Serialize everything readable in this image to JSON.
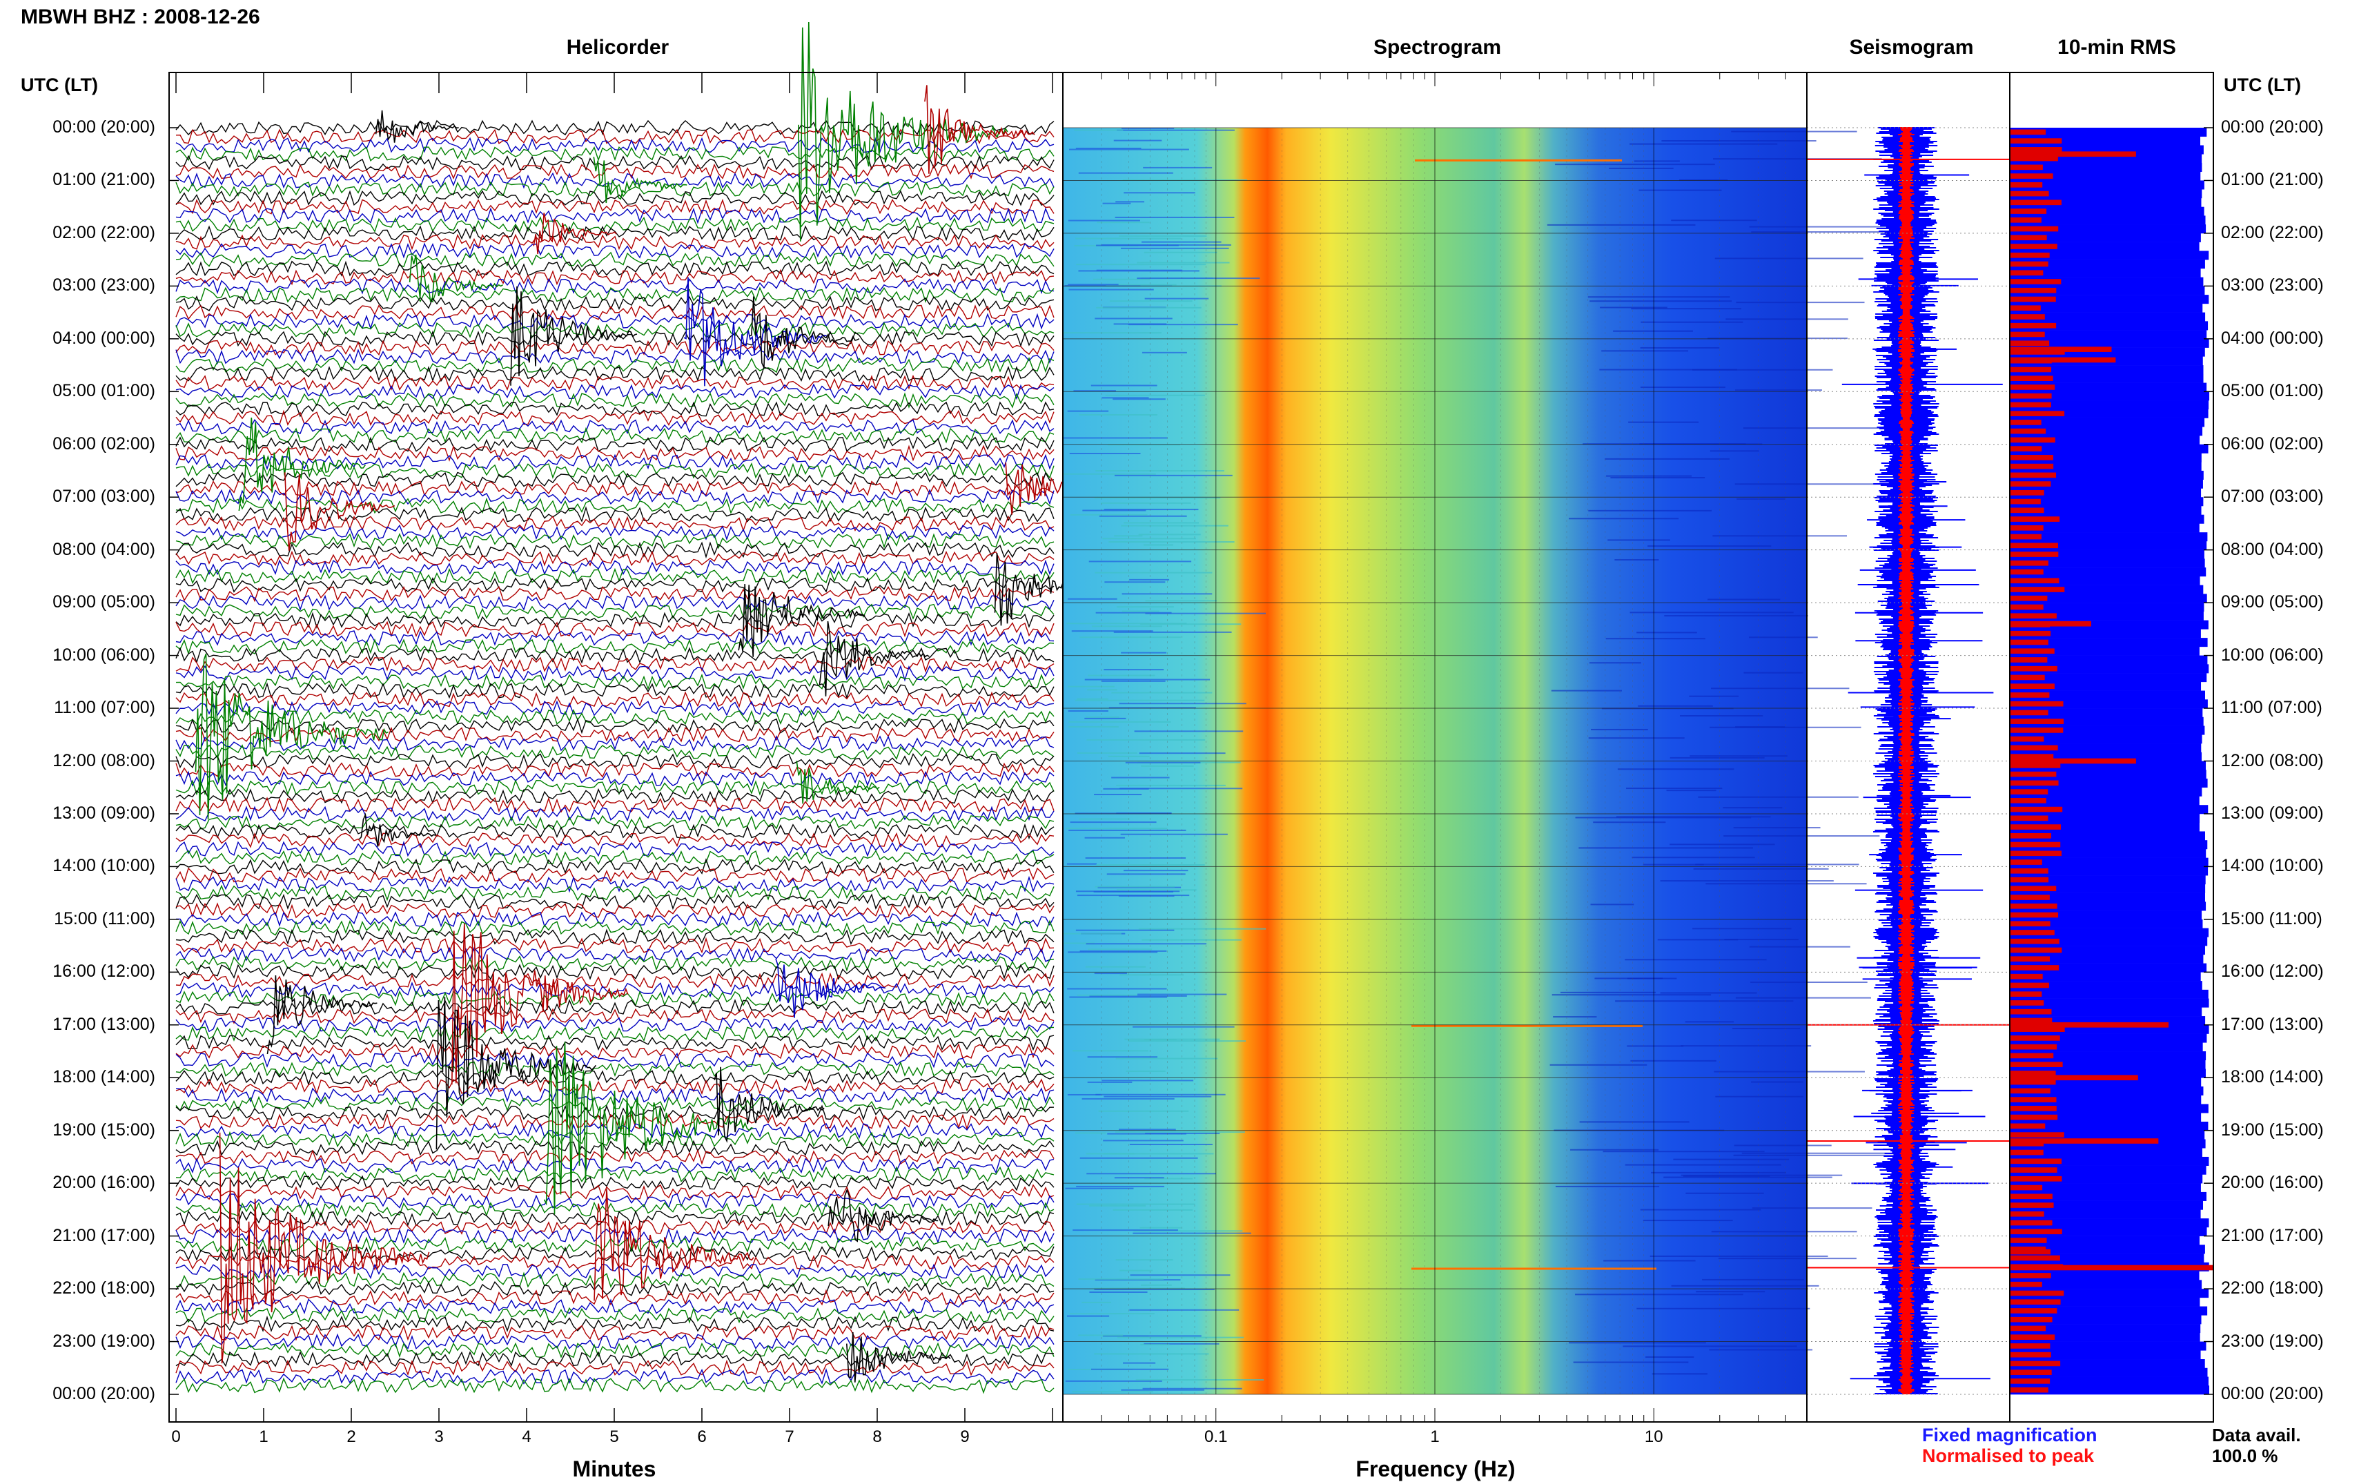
{
  "station_title": "MBWH BHZ : 2008-12-26",
  "panels": {
    "helicorder": "Helicorder",
    "spectrogram": "Spectrogram",
    "seismogram": "Seismogram",
    "rms": "10-min RMS"
  },
  "time_axis_header": "UTC (LT)",
  "time_labels": [
    "00:00 (20:00)",
    "01:00 (21:00)",
    "02:00 (22:00)",
    "03:00 (23:00)",
    "04:00 (00:00)",
    "05:00 (01:00)",
    "06:00 (02:00)",
    "07:00 (03:00)",
    "08:00 (04:00)",
    "09:00 (05:00)",
    "10:00 (06:00)",
    "11:00 (07:00)",
    "12:00 (08:00)",
    "13:00 (09:00)",
    "14:00 (10:00)",
    "15:00 (11:00)",
    "16:00 (12:00)",
    "17:00 (13:00)",
    "18:00 (14:00)",
    "19:00 (15:00)",
    "20:00 (16:00)",
    "21:00 (17:00)",
    "22:00 (18:00)",
    "23:00 (19:00)",
    "00:00 (20:00)"
  ],
  "helicorder_x": {
    "label": "Minutes",
    "ticks": [
      "0",
      "1",
      "2",
      "3",
      "4",
      "5",
      "6",
      "7",
      "8",
      "9"
    ]
  },
  "spectrogram_x": {
    "label": "Frequency (Hz)",
    "ticks": [
      "0.1",
      "1",
      "10"
    ],
    "scale": "log"
  },
  "legend": {
    "fixed": "Fixed magnification",
    "normalised": "Normalised to peak"
  },
  "availability": {
    "label": "Data avail.",
    "value": "100.0 %"
  },
  "colors": {
    "trace_cycle": [
      "#000000",
      "#b00000",
      "#0000c0",
      "#008000"
    ],
    "seismo_blue": "#0000ff",
    "seismo_red": "#ff0000",
    "rms_blue": "#0000ff",
    "rms_red": "#e00000"
  },
  "chart_data": [
    {
      "type": "line",
      "title": "Helicorder",
      "xlabel": "Minutes",
      "xlim": [
        0,
        10
      ],
      "ylabel": "UTC (LT)",
      "rows": 144,
      "events": [
        {
          "hour": 0.0,
          "minute": 2.4,
          "color": "black",
          "amp": 1.2
        },
        {
          "hour": 0.1,
          "minute": 7.4,
          "color": "green",
          "amp": 5.0
        },
        {
          "hour": 0.1,
          "minute": 8.7,
          "color": "red",
          "amp": 2.0
        },
        {
          "hour": 1.1,
          "minute": 4.9,
          "color": "green",
          "amp": 1.5
        },
        {
          "hour": 2.0,
          "minute": 4.2,
          "color": "red",
          "amp": 1.2
        },
        {
          "hour": 3.0,
          "minute": 2.8,
          "color": "green",
          "amp": 1.5
        },
        {
          "hour": 3.9,
          "minute": 4.0,
          "color": "black",
          "amp": 2.5
        },
        {
          "hour": 4.0,
          "minute": 6.0,
          "color": "blue",
          "amp": 3.0
        },
        {
          "hour": 4.0,
          "minute": 6.7,
          "color": "black",
          "amp": 2.0
        },
        {
          "hour": 6.4,
          "minute": 0.9,
          "color": "green",
          "amp": 2.5
        },
        {
          "hour": 6.8,
          "minute": 9.6,
          "color": "red",
          "amp": 1.5
        },
        {
          "hour": 7.2,
          "minute": 1.4,
          "color": "red",
          "amp": 2.0
        },
        {
          "hour": 8.7,
          "minute": 9.5,
          "color": "black",
          "amp": 2.0
        },
        {
          "hour": 9.2,
          "minute": 6.6,
          "color": "black",
          "amp": 2.5
        },
        {
          "hour": 10.0,
          "minute": 7.5,
          "color": "black",
          "amp": 2.0
        },
        {
          "hour": 11.5,
          "minute": 0.5,
          "color": "green",
          "amp": 4.5
        },
        {
          "hour": 12.5,
          "minute": 7.2,
          "color": "green",
          "amp": 1.2
        },
        {
          "hour": 13.4,
          "minute": 2.2,
          "color": "black",
          "amp": 1.0
        },
        {
          "hour": 16.6,
          "minute": 1.2,
          "color": "black",
          "amp": 2.0
        },
        {
          "hour": 16.4,
          "minute": 3.4,
          "color": "red",
          "amp": 4.0
        },
        {
          "hour": 16.3,
          "minute": 7.0,
          "color": "blue",
          "amp": 2.0
        },
        {
          "hour": 17.8,
          "minute": 3.2,
          "color": "black",
          "amp": 3.5
        },
        {
          "hour": 18.9,
          "minute": 4.5,
          "color": "green",
          "amp": 5.0
        },
        {
          "hour": 18.6,
          "minute": 6.3,
          "color": "black",
          "amp": 2.0
        },
        {
          "hour": 20.7,
          "minute": 7.6,
          "color": "black",
          "amp": 2.0
        },
        {
          "hour": 21.4,
          "minute": 0.8,
          "color": "red",
          "amp": 5.0
        },
        {
          "hour": 21.4,
          "minute": 5.0,
          "color": "red",
          "amp": 3.5
        },
        {
          "hour": 23.3,
          "minute": 7.8,
          "color": "black",
          "amp": 1.8
        }
      ]
    },
    {
      "type": "heatmap",
      "title": "Spectrogram",
      "xlabel": "Frequency (Hz)",
      "x_scale": "log",
      "xlim": [
        0.02,
        50
      ],
      "ylabel": "UTC (LT)",
      "peak_band_hz": [
        0.15,
        0.35
      ],
      "secondary_band_hz": [
        1.5,
        3.0
      ],
      "narrow_lines_hz": [
        1.2,
        9.5,
        12.5
      ]
    },
    {
      "type": "line",
      "title": "Seismogram",
      "series": [
        {
          "name": "Fixed magnification",
          "color": "#0000ff"
        },
        {
          "name": "Normalised to peak",
          "color": "#ff0000"
        }
      ]
    },
    {
      "type": "bar",
      "title": "10-min RMS",
      "series": [
        {
          "name": "Fixed magnification",
          "color": "#0000ff"
        },
        {
          "name": "Normalised to peak",
          "color": "#e00000"
        }
      ],
      "availability_percent": 100.0,
      "red_spikes": [
        {
          "hour": 0.5,
          "value": 0.62
        },
        {
          "hour": 4.2,
          "value": 0.5
        },
        {
          "hour": 4.4,
          "value": 0.52
        },
        {
          "hour": 9.4,
          "value": 0.4
        },
        {
          "hour": 12.0,
          "value": 0.62
        },
        {
          "hour": 17.0,
          "value": 0.78
        },
        {
          "hour": 18.0,
          "value": 0.63
        },
        {
          "hour": 19.2,
          "value": 0.73
        },
        {
          "hour": 21.3,
          "value": 0.2
        },
        {
          "hour": 21.6,
          "value": 1.0
        }
      ]
    }
  ]
}
